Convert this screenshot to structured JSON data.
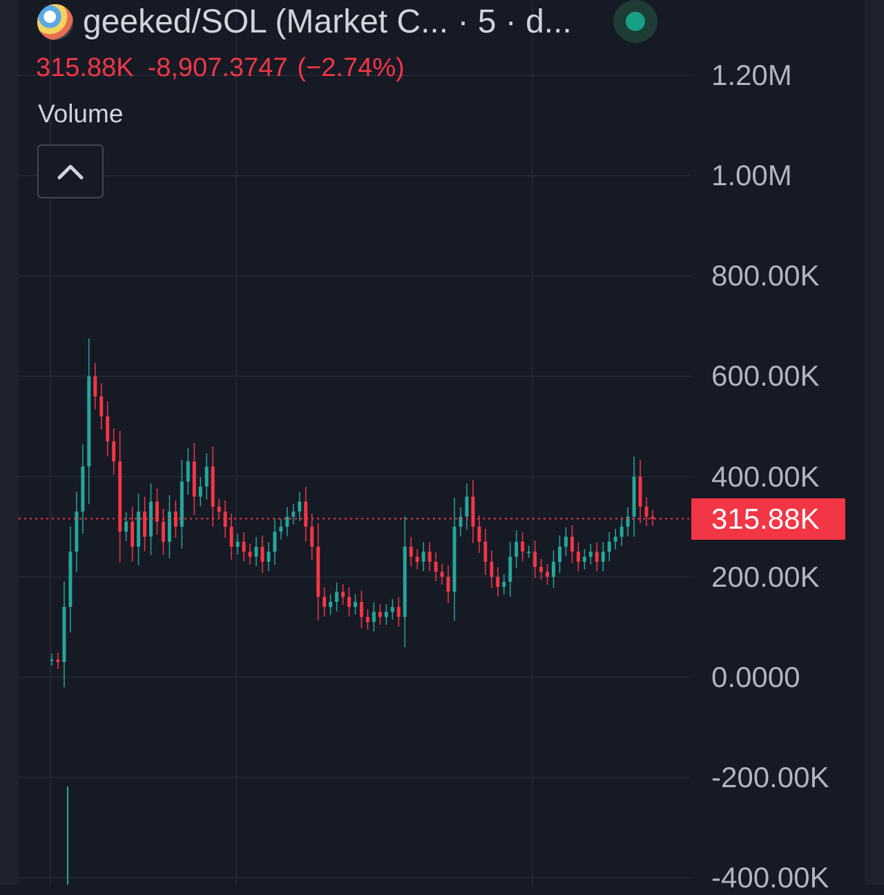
{
  "header": {
    "title": "geeked/SOL (Market C... · 5 · d...",
    "avatar_icon": "token-avatar-icon",
    "status_icon": "market-open-dot-icon",
    "status_color": "#16a085"
  },
  "legend": {
    "price": "315.88K",
    "change": "-8,907.3747",
    "change_pct": "(−2.74%)",
    "color": "#f23645"
  },
  "volume_label": "Volume",
  "collapse_button_icon": "chevron-up-icon",
  "price_axis": {
    "labels": [
      "1.20M",
      "1.00M",
      "800.00K",
      "600.00K",
      "400.00K",
      "200.00K",
      "0.0000",
      "-200.00K",
      "-400.00K"
    ],
    "last_price_tag": "315.88K"
  },
  "colors": {
    "up": "#26a69a",
    "down": "#f23645",
    "background": "#161a25",
    "grid": "#232735"
  },
  "chart_data": {
    "type": "candlestick",
    "title": "",
    "xlabel": "",
    "ylabel": "",
    "ylim": [
      -400000,
      1200000
    ],
    "last_price": 315880,
    "grid": true,
    "series": [
      {
        "values": [
          35000,
          30000,
          140000,
          250000,
          330000,
          420000,
          600000,
          560000,
          520000,
          470000,
          430000,
          290000,
          310000,
          260000,
          330000,
          280000,
          350000,
          310000,
          270000,
          330000,
          300000,
          390000,
          430000,
          360000,
          380000,
          420000,
          340000,
          330000,
          300000,
          260000,
          270000,
          250000,
          240000,
          260000,
          230000,
          250000,
          290000,
          300000,
          320000,
          330000,
          350000,
          300000,
          260000,
          160000,
          140000,
          150000,
          170000,
          160000,
          140000,
          150000,
          120000,
          110000,
          130000,
          120000,
          130000,
          140000,
          120000,
          260000,
          240000,
          230000,
          250000,
          230000,
          210000,
          200000,
          170000,
          300000,
          320000,
          360000,
          300000,
          270000,
          230000,
          200000,
          180000,
          190000,
          240000,
          270000,
          250000,
          250000,
          220000,
          210000,
          200000,
          230000,
          260000,
          280000,
          250000,
          230000,
          240000,
          250000,
          230000,
          250000,
          270000,
          280000,
          300000,
          320000,
          400000,
          340000,
          320000,
          316000
        ]
      }
    ]
  }
}
